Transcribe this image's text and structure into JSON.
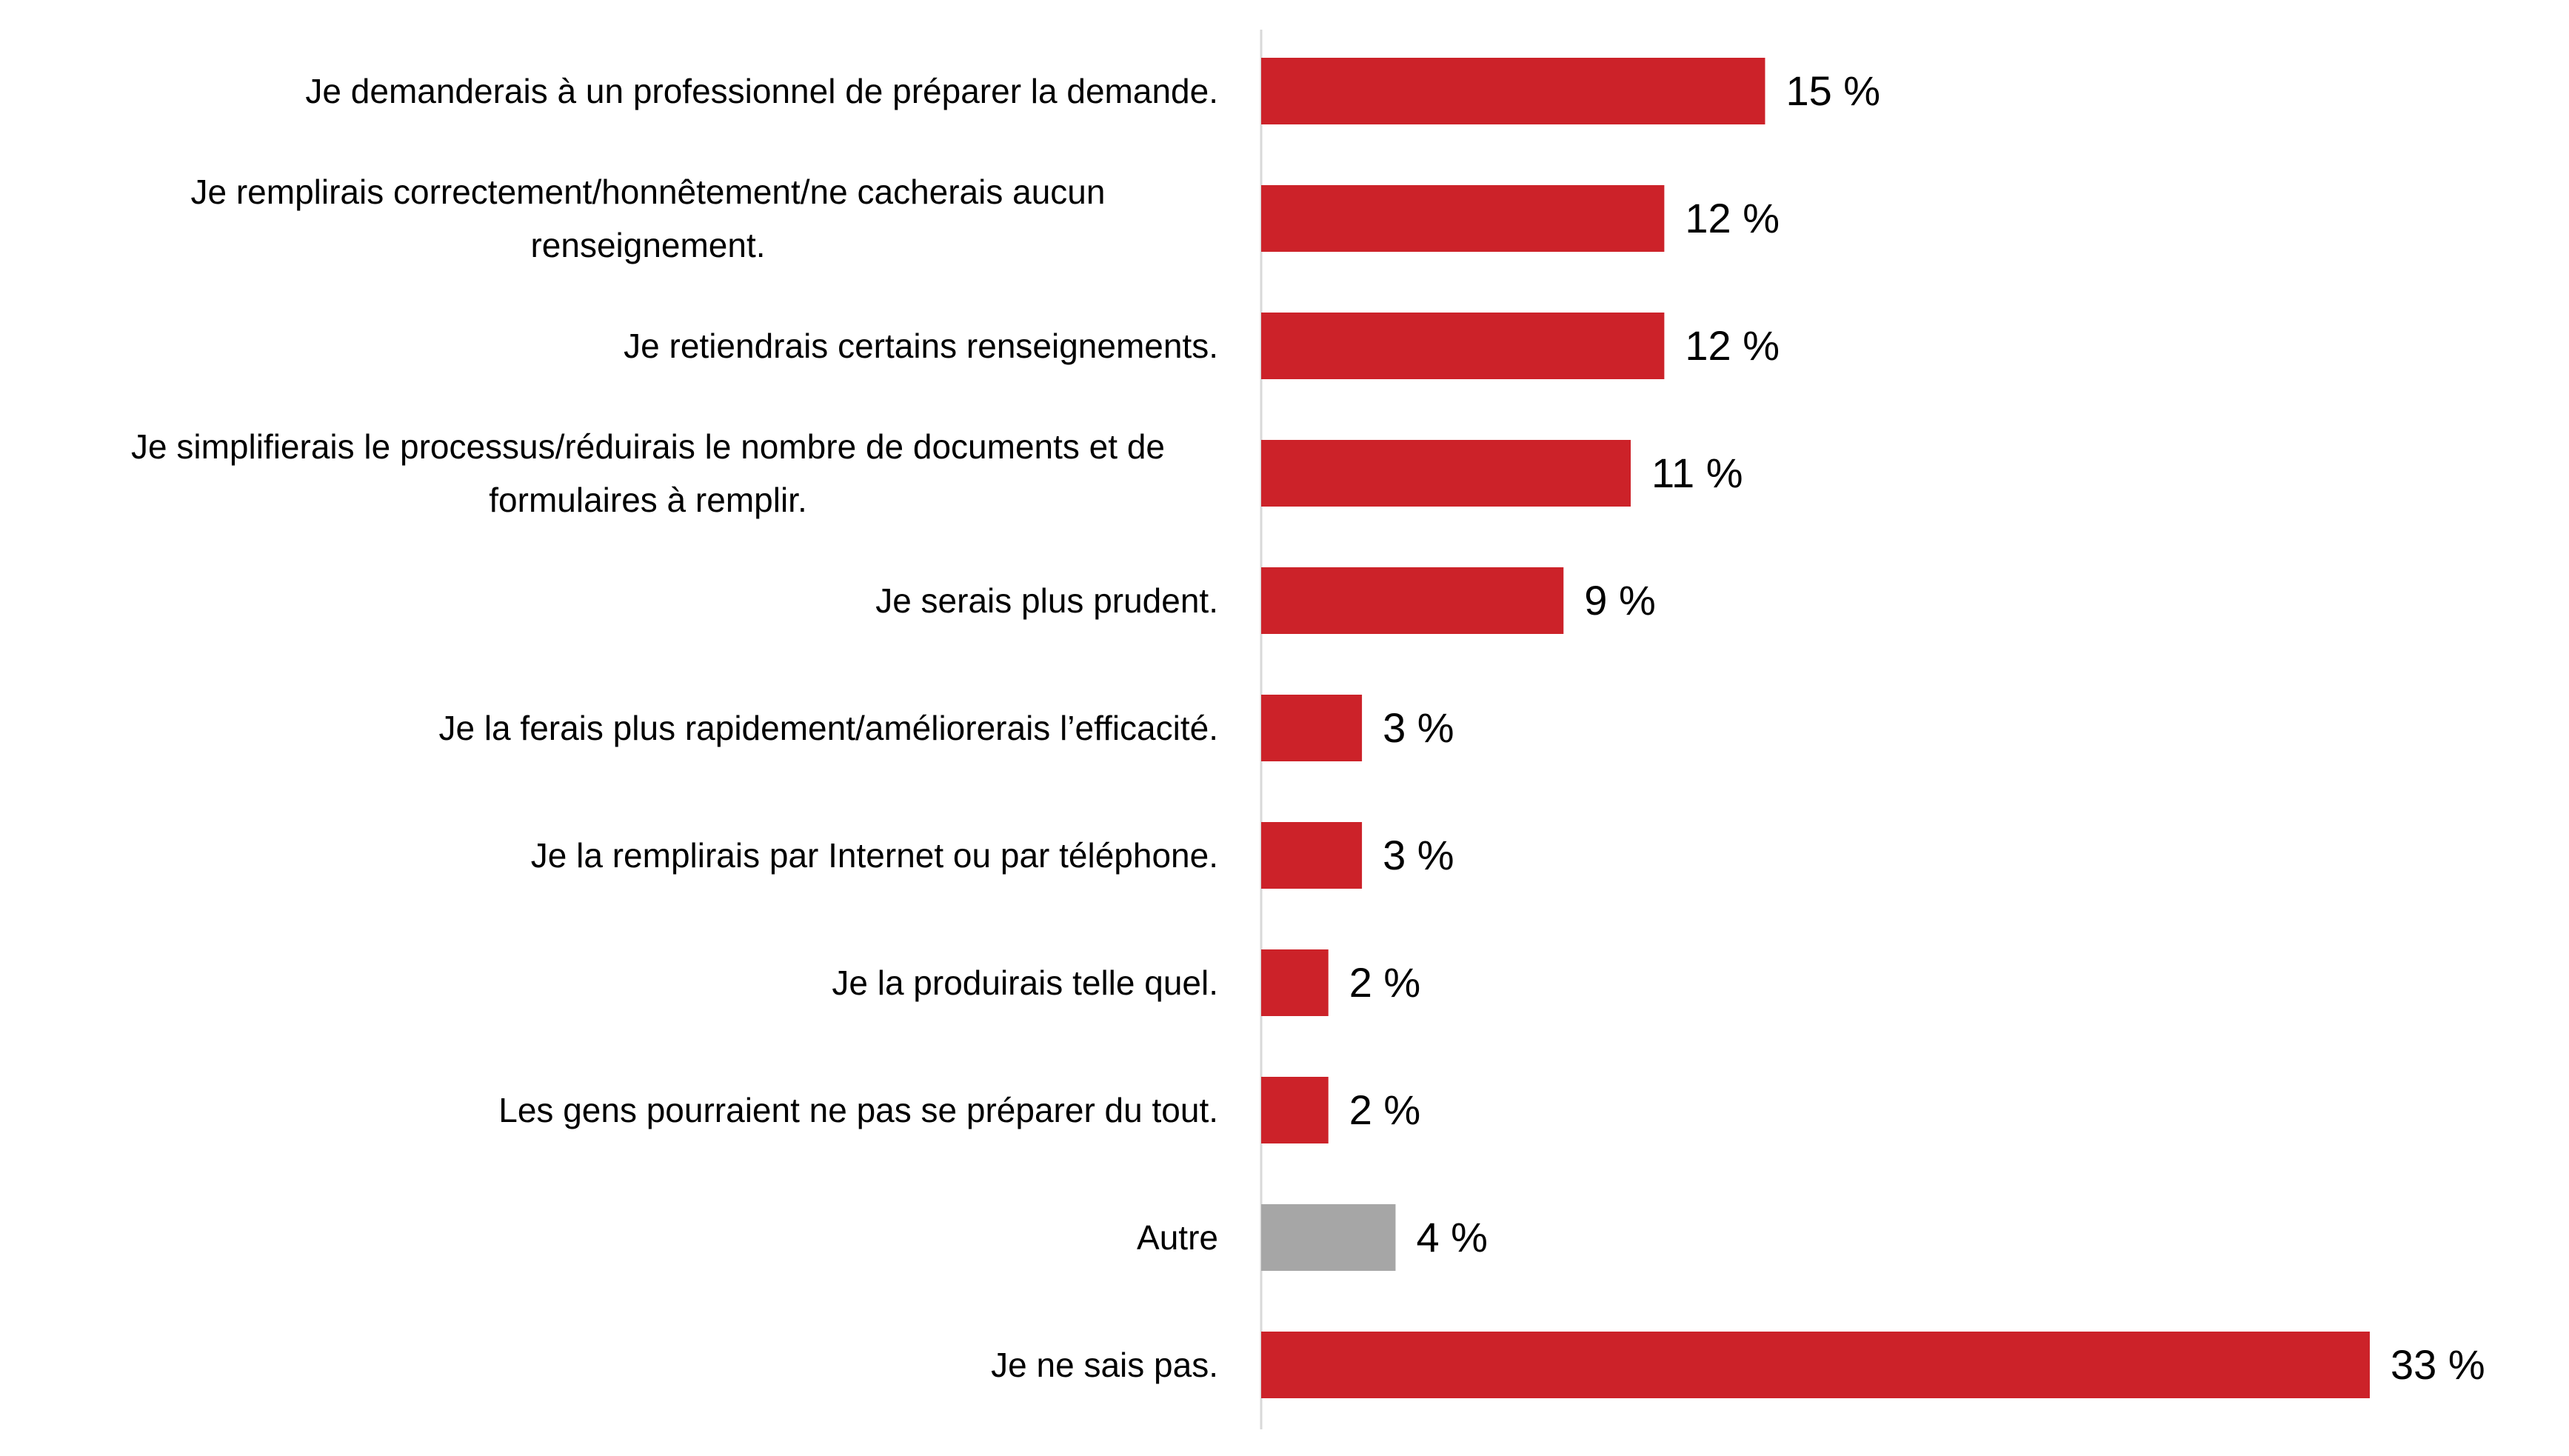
{
  "chart_data": {
    "type": "bar",
    "orientation": "horizontal",
    "categories": [
      "Je demanderais à un professionnel de préparer la demande.",
      "Je remplirais correctement/honnêtement/ne cacherais aucun renseignement.",
      "Je retiendrais certains renseignements.",
      "Je simplifierais le processus/réduirais le nombre de documents et de formulaires à remplir.",
      "Je serais plus prudent.",
      "Je la ferais plus rapidement/améliorerais l’efficacité.",
      "Je la remplirais par Internet ou par téléphone.",
      "Je la produirais telle quel.",
      "Les gens pourraient ne pas se préparer du tout.",
      "Autre",
      "Je ne sais pas."
    ],
    "values": [
      15,
      12,
      12,
      11,
      9,
      3,
      3,
      2,
      2,
      4,
      33
    ],
    "value_labels": [
      "15 %",
      "12 %",
      "12 %",
      "11 %",
      "9 %",
      "3 %",
      "3 %",
      "2 %",
      "2 %",
      "4 %",
      "33 %"
    ],
    "colors": [
      "#cc2229",
      "#cc2229",
      "#cc2229",
      "#cc2229",
      "#cc2229",
      "#cc2229",
      "#cc2229",
      "#cc2229",
      "#cc2229",
      "#a6a6a6",
      "#cc2229"
    ]
  }
}
